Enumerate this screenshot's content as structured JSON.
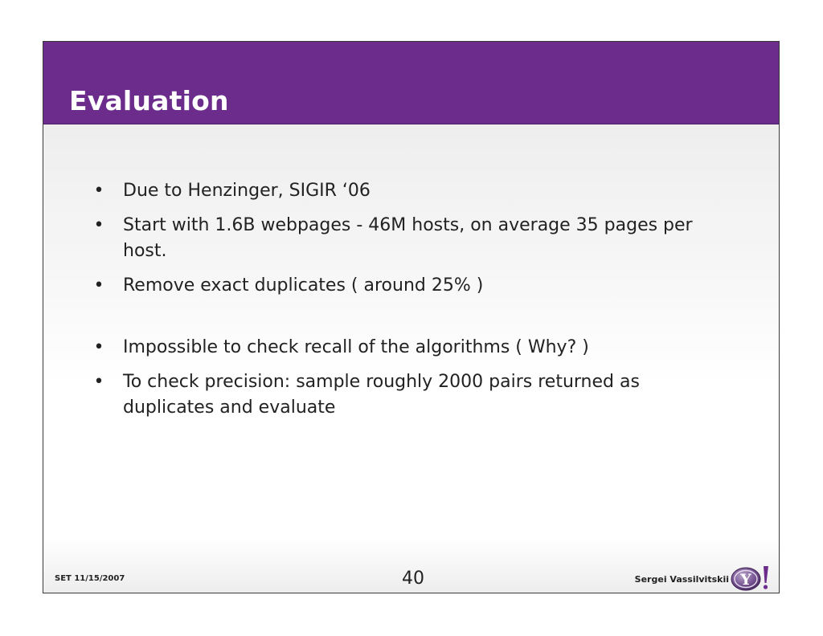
{
  "slide": {
    "title": "Evaluation",
    "bullet_glyph": "•",
    "bullets": [
      "Due to Henzinger, SIGIR ‘06",
      "Start with 1.6B webpages - 46M hosts,  on average 35 pages per host.",
      "Remove exact duplicates ( around 25% )",
      "Impossible to check recall of the algorithms ( Why? )",
      "To check precision: sample roughly 2000 pairs returned as duplicates and evaluate"
    ]
  },
  "footer": {
    "date": "SET 11/15/2007",
    "page_number": "40",
    "author": "Sergei Vassilvitskii",
    "logo_icon": "yahoo-logo-icon",
    "logo_text": "Y!"
  },
  "colors": {
    "title_bar": "#6c2c8b",
    "title_text": "#ffffff",
    "body_text": "#222222"
  }
}
